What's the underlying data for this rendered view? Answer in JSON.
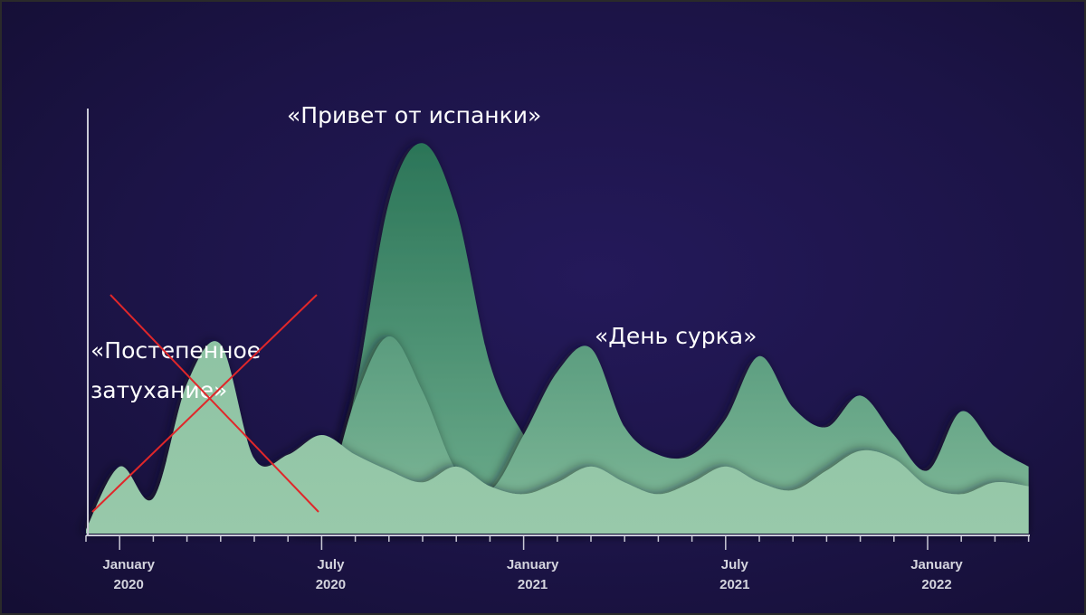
{
  "chart_data": {
    "type": "area",
    "title": "",
    "xlabel": "",
    "ylabel": "",
    "y_axis_tick_labels": false,
    "grid": false,
    "x": [
      "2019-12",
      "2020-01",
      "2020-02",
      "2020-03",
      "2020-04",
      "2020-05",
      "2020-06",
      "2020-07",
      "2020-08",
      "2020-09",
      "2020-10",
      "2020-11",
      "2020-12",
      "2021-01",
      "2021-02",
      "2021-03",
      "2021-04",
      "2021-05",
      "2021-06",
      "2021-07",
      "2021-08",
      "2021-09",
      "2021-10",
      "2021-11",
      "2021-12",
      "2022-01",
      "2022-02",
      "2022-03",
      "2022-04"
    ],
    "x_tick_labels": [
      {
        "month": "2020-01",
        "line1": "January",
        "line2": "2020"
      },
      {
        "month": "2020-07",
        "line1": "July",
        "line2": "2020"
      },
      {
        "month": "2021-01",
        "line1": "January",
        "line2": "2021"
      },
      {
        "month": "2021-07",
        "line1": "July",
        "line2": "2021"
      },
      {
        "month": "2022-01",
        "line1": "January",
        "line2": "2022"
      }
    ],
    "series": [
      {
        "color": "#2f7d60",
        "values": [
          0,
          0,
          0,
          0,
          0,
          0,
          0,
          2,
          36,
          84,
          99,
          82,
          43,
          25,
          13,
          0,
          0,
          0,
          0,
          0,
          0,
          0,
          0,
          0,
          0,
          0,
          0,
          0,
          0
        ]
      },
      {
        "color": "#5f9f82",
        "values": [
          0,
          0,
          0,
          0,
          0,
          0,
          0,
          6,
          34,
          50,
          36,
          16,
          11,
          25,
          41,
          47,
          27,
          20,
          20,
          29,
          45,
          32,
          27,
          35,
          25,
          16,
          31,
          22,
          17
        ]
      },
      {
        "color": "#8ec3a3",
        "values": [
          1,
          17,
          9,
          38,
          48,
          19,
          20,
          25,
          20,
          16,
          13,
          17,
          12,
          10,
          13,
          17,
          13,
          10,
          13,
          17,
          13,
          11,
          16,
          21,
          19,
          12,
          10,
          13,
          12
        ]
      }
    ],
    "ylim": [
      0,
      110
    ]
  },
  "annotations": {
    "spanish_flu": "«Привет от испанки»",
    "groundhog_day": "«День сурка»",
    "gradual_fade_line1": "«Постепенное",
    "gradual_fade_line2": "затухание»",
    "crossed_out_color": "#e0272a"
  }
}
